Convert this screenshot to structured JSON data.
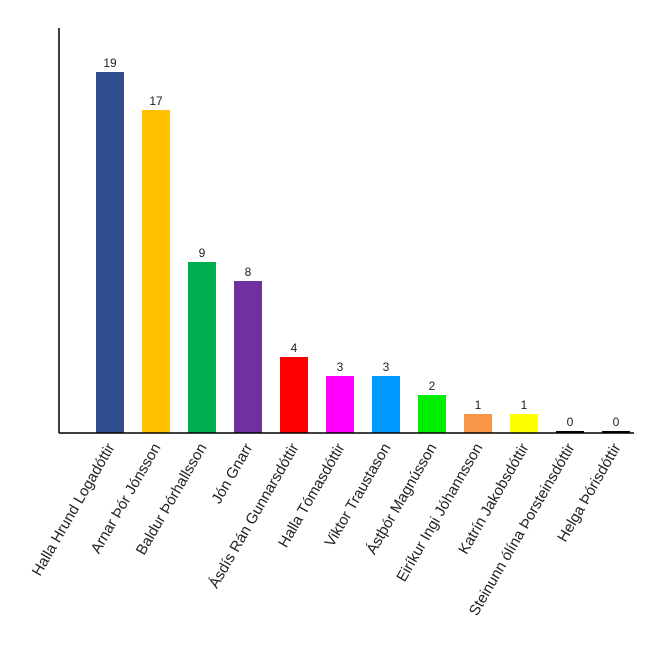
{
  "chart_data": {
    "type": "bar",
    "title": "",
    "xlabel": "",
    "ylabel": "",
    "ylim": [
      0,
      21
    ],
    "grid": false,
    "legend": "none",
    "categories": [
      "Halla Hrund Logadóttir",
      "Arnar Þór Jónsson",
      "Baldur Þórhallsson",
      "Jón Gnarr",
      "Ásdís Rán Gunnarsdóttir",
      "Halla Tómasdóttir",
      "Viktor Traustason",
      "Ástþór Magnússon",
      "Eiríkur Ingi Jóhannsson",
      "Katrín Jakobsdóttir",
      "Steinunn ólína Þorsteinsdóttir",
      "Helga Þórisdóttir"
    ],
    "values": [
      19,
      17,
      9,
      8,
      4,
      3,
      3,
      2,
      1,
      1,
      0,
      0
    ],
    "colors": [
      "#2f4f8f",
      "#ffc000",
      "#00b050",
      "#7030a0",
      "#ff0000",
      "#ff00ff",
      "#0099ff",
      "#00ee00",
      "#f79646",
      "#ffff00",
      "#000000",
      "#000000"
    ]
  }
}
